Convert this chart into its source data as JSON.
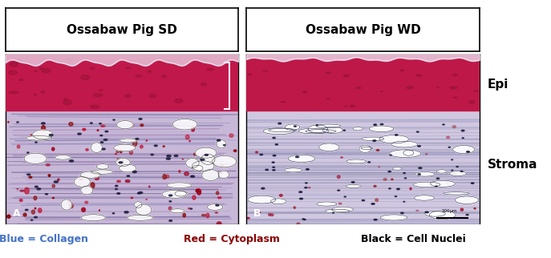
{
  "title_left": "Ossabaw Pig SD",
  "title_right": "Ossabaw Pig WD",
  "label_A": "A",
  "label_B": "B",
  "label_epi": "Epi",
  "label_stroma": "Stroma",
  "legend_blue_text": "Blue = Collagen",
  "legend_red_text": "Red = Cytoplasm",
  "legend_black_text": "Black = Cell Nuclei",
  "legend_blue_color": "#4472C4",
  "legend_red_color": "#8B0000",
  "legend_black_color": "#000000",
  "bg_color": "#FFFFFF",
  "panel_border_color": "#000000",
  "title_box_bg": "#FFFFFF",
  "epi_color_left": "#C41E5A",
  "stroma_color_left": "#B8A0C8",
  "epi_color_right": "#C41E5A",
  "stroma_color_right": "#C8C0D8",
  "fig_width": 6.87,
  "fig_height": 3.22,
  "dpi": 100
}
